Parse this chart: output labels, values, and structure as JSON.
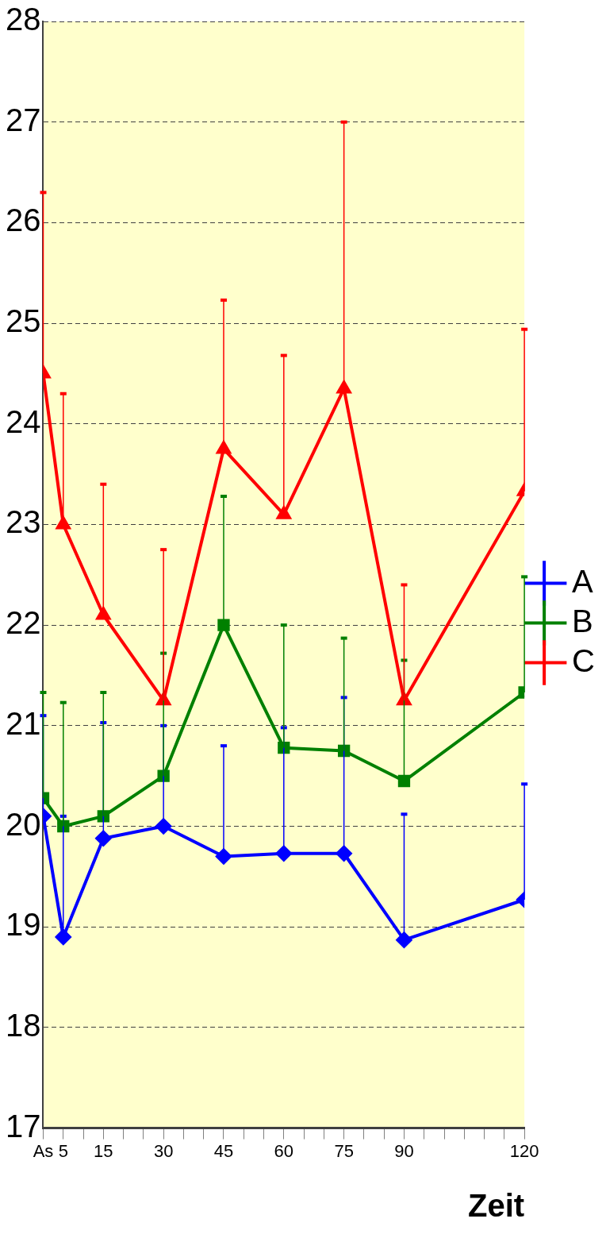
{
  "chart_data": {
    "type": "line",
    "xlabel": "Zeit",
    "x": [
      0,
      5,
      15,
      30,
      45,
      60,
      75,
      90,
      120
    ],
    "series": [
      {
        "name": "A",
        "color": "#0000ff",
        "marker": "diamond",
        "values": [
          20.1,
          18.9,
          19.88,
          20.0,
          19.7,
          19.73,
          19.73,
          18.87,
          19.27
        ],
        "errors": [
          [
            20.1,
            21.1
          ],
          [
            18.9,
            20.1
          ],
          [
            19.88,
            21.03
          ],
          [
            20.0,
            21.0
          ],
          [
            19.7,
            20.8
          ],
          [
            19.73,
            20.98
          ],
          [
            19.73,
            21.28
          ],
          [
            18.87,
            20.12
          ],
          [
            19.27,
            20.42
          ]
        ]
      },
      {
        "name": "B",
        "color": "#008000",
        "marker": "square",
        "values": [
          20.28,
          20.0,
          20.1,
          20.5,
          22.0,
          20.78,
          20.75,
          20.45,
          21.33
        ],
        "errors": [
          [
            20.28,
            21.33
          ],
          [
            20.0,
            21.23
          ],
          [
            20.1,
            21.33
          ],
          [
            20.5,
            21.72
          ],
          [
            22.0,
            23.28
          ],
          [
            20.78,
            22.0
          ],
          [
            20.75,
            21.87
          ],
          [
            20.45,
            21.65
          ],
          [
            21.33,
            22.48
          ]
        ]
      },
      {
        "name": "C",
        "color": "#ff0000",
        "marker": "triangle",
        "values": [
          24.5,
          23.0,
          22.1,
          21.25,
          23.75,
          23.1,
          24.35,
          21.25,
          23.33
        ],
        "errors": [
          [
            24.5,
            26.3
          ],
          [
            23.0,
            24.3
          ],
          [
            22.1,
            23.4
          ],
          [
            21.25,
            22.75
          ],
          [
            23.75,
            25.23
          ],
          [
            23.1,
            24.68
          ],
          [
            24.35,
            27.0
          ],
          [
            21.25,
            22.4
          ],
          [
            23.33,
            24.94
          ]
        ]
      }
    ],
    "xlim": [
      0,
      120
    ],
    "xticks": [
      {
        "value": 0,
        "label": "As"
      },
      5,
      {
        "value": 10,
        "label": null
      },
      15,
      {
        "value": 20,
        "label": null
      },
      {
        "value": 25,
        "label": null
      },
      30,
      {
        "value": 35,
        "label": null
      },
      {
        "value": 40,
        "label": null
      },
      45,
      {
        "value": 50,
        "label": null
      },
      {
        "value": 55,
        "label": null
      },
      60,
      {
        "value": 65,
        "label": null
      },
      {
        "value": 70,
        "label": null
      },
      75,
      {
        "value": 80,
        "label": null
      },
      {
        "value": 85,
        "label": null
      },
      90,
      {
        "value": 95,
        "label": null
      },
      {
        "value": 100,
        "label": null
      },
      {
        "value": 105,
        "label": null
      },
      {
        "value": 110,
        "label": null
      },
      {
        "value": 115,
        "label": null
      },
      120
    ],
    "ylim": [
      17,
      28
    ],
    "yticks": [
      17,
      18,
      19,
      20,
      21,
      22,
      23,
      24,
      25,
      26,
      27,
      28
    ],
    "grid": "y",
    "legend": "right",
    "line_style": "solid"
  }
}
